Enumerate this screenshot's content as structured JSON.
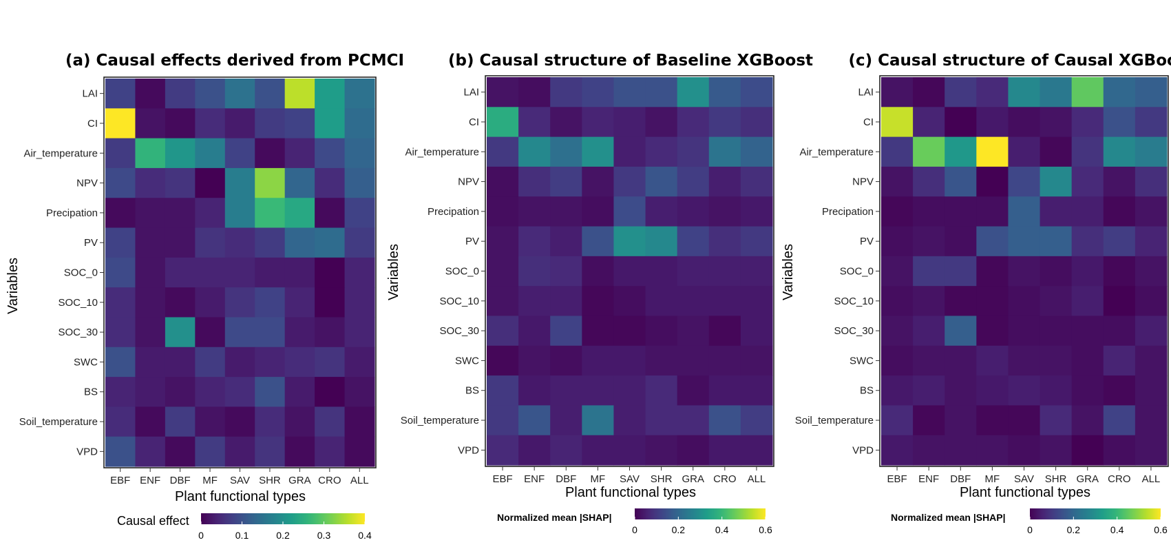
{
  "colormap": [
    "#440154",
    "#482878",
    "#3e4989",
    "#31688e",
    "#26828e",
    "#1f9e89",
    "#35b779",
    "#6ece58",
    "#b5de2b",
    "#fde725"
  ],
  "chart_data": [
    {
      "type": "heatmap",
      "title": "(a) Causal effects derived from PCMCI",
      "xlabel": "Plant functional types",
      "ylabel": "Variables",
      "x": [
        "EBF",
        "ENF",
        "DBF",
        "MF",
        "SAV",
        "SHR",
        "GRA",
        "CRO",
        "ALL"
      ],
      "y": [
        "LAI",
        "CI",
        "Air_temperature",
        "NPV",
        "Precipation",
        "PV",
        "SOC_0",
        "SOC_10",
        "SOC_30",
        "SWC",
        "BS",
        "Soil_temperature",
        "VPD"
      ],
      "legend_title": "Causal effect",
      "legend_placement": "bottom",
      "vmin": 0,
      "vmax": 0.4,
      "legend_ticks": [
        "0",
        "0.1",
        "0.2",
        "0.3",
        "0.4"
      ],
      "values": [
        [
          0.08,
          0.01,
          0.07,
          0.1,
          0.15,
          0.1,
          0.36,
          0.22,
          0.15
        ],
        [
          0.42,
          0.02,
          0.01,
          0.05,
          0.03,
          0.07,
          0.08,
          0.22,
          0.14
        ],
        [
          0.07,
          0.26,
          0.21,
          0.17,
          0.08,
          0.01,
          0.04,
          0.09,
          0.13
        ],
        [
          0.09,
          0.05,
          0.06,
          0.0,
          0.17,
          0.33,
          0.13,
          0.05,
          0.12
        ],
        [
          0.01,
          0.02,
          0.02,
          0.04,
          0.17,
          0.27,
          0.24,
          0.01,
          0.08
        ],
        [
          0.08,
          0.02,
          0.02,
          0.06,
          0.05,
          0.07,
          0.13,
          0.14,
          0.07
        ],
        [
          0.09,
          0.02,
          0.04,
          0.04,
          0.04,
          0.03,
          0.03,
          0.0,
          0.04
        ],
        [
          0.05,
          0.02,
          0.01,
          0.03,
          0.06,
          0.08,
          0.04,
          0.0,
          0.04
        ],
        [
          0.05,
          0.02,
          0.2,
          0.01,
          0.09,
          0.09,
          0.03,
          0.02,
          0.04
        ],
        [
          0.1,
          0.03,
          0.03,
          0.07,
          0.03,
          0.04,
          0.05,
          0.06,
          0.03
        ],
        [
          0.04,
          0.03,
          0.02,
          0.04,
          0.05,
          0.1,
          0.03,
          0.0,
          0.02
        ],
        [
          0.05,
          0.01,
          0.07,
          0.02,
          0.01,
          0.05,
          0.02,
          0.06,
          0.01
        ],
        [
          0.1,
          0.04,
          0.01,
          0.07,
          0.03,
          0.06,
          0.01,
          0.04,
          0.01
        ]
      ]
    },
    {
      "type": "heatmap",
      "title": "(b) Causal structure of Baseline XGBoost",
      "xlabel": "Plant functional types",
      "ylabel": "Variables",
      "x": [
        "EBF",
        "ENF",
        "DBF",
        "MF",
        "SAV",
        "SHR",
        "GRA",
        "CRO",
        "ALL"
      ],
      "y": [
        "LAI",
        "CI",
        "Air_temperature",
        "NPV",
        "Precipation",
        "PV",
        "SOC_0",
        "SOC_10",
        "SOC_30",
        "SWC",
        "BS",
        "Soil_temperature",
        "VPD"
      ],
      "legend_title": "Normalized mean |SHAP|",
      "legend_placement": "bottom",
      "vmin": 0,
      "vmax": 0.6,
      "legend_ticks": [
        "0",
        "0.2",
        "0.4",
        "0.6"
      ],
      "values": [
        [
          0.03,
          0.02,
          0.1,
          0.12,
          0.15,
          0.15,
          0.3,
          0.17,
          0.14
        ],
        [
          0.37,
          0.07,
          0.03,
          0.06,
          0.05,
          0.03,
          0.07,
          0.1,
          0.08
        ],
        [
          0.1,
          0.28,
          0.22,
          0.3,
          0.05,
          0.07,
          0.09,
          0.23,
          0.19
        ],
        [
          0.02,
          0.08,
          0.11,
          0.03,
          0.1,
          0.16,
          0.11,
          0.05,
          0.08
        ],
        [
          0.02,
          0.03,
          0.03,
          0.02,
          0.14,
          0.05,
          0.04,
          0.03,
          0.04
        ],
        [
          0.03,
          0.07,
          0.05,
          0.15,
          0.3,
          0.28,
          0.12,
          0.08,
          0.1
        ],
        [
          0.03,
          0.08,
          0.07,
          0.02,
          0.04,
          0.04,
          0.05,
          0.05,
          0.05
        ],
        [
          0.03,
          0.05,
          0.05,
          0.01,
          0.02,
          0.04,
          0.04,
          0.04,
          0.04
        ],
        [
          0.08,
          0.04,
          0.12,
          0.01,
          0.01,
          0.02,
          0.03,
          0.01,
          0.04
        ],
        [
          0.01,
          0.03,
          0.02,
          0.04,
          0.04,
          0.03,
          0.03,
          0.03,
          0.03
        ],
        [
          0.1,
          0.04,
          0.05,
          0.05,
          0.05,
          0.07,
          0.02,
          0.04,
          0.04
        ],
        [
          0.1,
          0.16,
          0.05,
          0.23,
          0.05,
          0.07,
          0.07,
          0.15,
          0.11
        ],
        [
          0.07,
          0.04,
          0.06,
          0.04,
          0.04,
          0.03,
          0.02,
          0.04,
          0.04
        ]
      ]
    },
    {
      "type": "heatmap",
      "title": "(c) Causal structure of Causal XGBoost",
      "xlabel": "Plant functional types",
      "ylabel": "Variables",
      "x": [
        "EBF",
        "ENF",
        "DBF",
        "MF",
        "SAV",
        "SHR",
        "GRA",
        "CRO",
        "ALL"
      ],
      "y": [
        "LAI",
        "CI",
        "Air_temperature",
        "NPV",
        "Precipation",
        "PV",
        "SOC_0",
        "SOC_10",
        "SOC_30",
        "SWC",
        "BS",
        "Soil_temperature",
        "VPD"
      ],
      "legend_title": "Normalized mean |SHAP|",
      "legend_placement": "bottom",
      "vmin": 0,
      "vmax": 0.6,
      "legend_ticks": [
        "0",
        "0.2",
        "0.4",
        "0.6"
      ],
      "values": [
        [
          0.03,
          0.01,
          0.1,
          0.07,
          0.28,
          0.24,
          0.45,
          0.2,
          0.18
        ],
        [
          0.55,
          0.06,
          0.0,
          0.04,
          0.02,
          0.03,
          0.07,
          0.15,
          0.1
        ],
        [
          0.1,
          0.46,
          0.32,
          0.6,
          0.05,
          0.01,
          0.09,
          0.28,
          0.25
        ],
        [
          0.03,
          0.08,
          0.16,
          0.0,
          0.13,
          0.28,
          0.07,
          0.03,
          0.08
        ],
        [
          0.01,
          0.02,
          0.02,
          0.02,
          0.18,
          0.05,
          0.05,
          0.01,
          0.03
        ],
        [
          0.02,
          0.03,
          0.02,
          0.15,
          0.18,
          0.18,
          0.08,
          0.11,
          0.06
        ],
        [
          0.03,
          0.1,
          0.1,
          0.01,
          0.03,
          0.02,
          0.04,
          0.01,
          0.03
        ],
        [
          0.02,
          0.03,
          0.01,
          0.01,
          0.02,
          0.03,
          0.05,
          0.0,
          0.02
        ],
        [
          0.03,
          0.05,
          0.18,
          0.01,
          0.02,
          0.02,
          0.02,
          0.02,
          0.05
        ],
        [
          0.02,
          0.03,
          0.03,
          0.05,
          0.03,
          0.03,
          0.02,
          0.06,
          0.03
        ],
        [
          0.04,
          0.05,
          0.03,
          0.04,
          0.05,
          0.04,
          0.02,
          0.01,
          0.03
        ],
        [
          0.07,
          0.01,
          0.03,
          0.01,
          0.01,
          0.07,
          0.03,
          0.12,
          0.03
        ],
        [
          0.04,
          0.03,
          0.03,
          0.03,
          0.02,
          0.03,
          0.0,
          0.02,
          0.03
        ]
      ]
    }
  ]
}
